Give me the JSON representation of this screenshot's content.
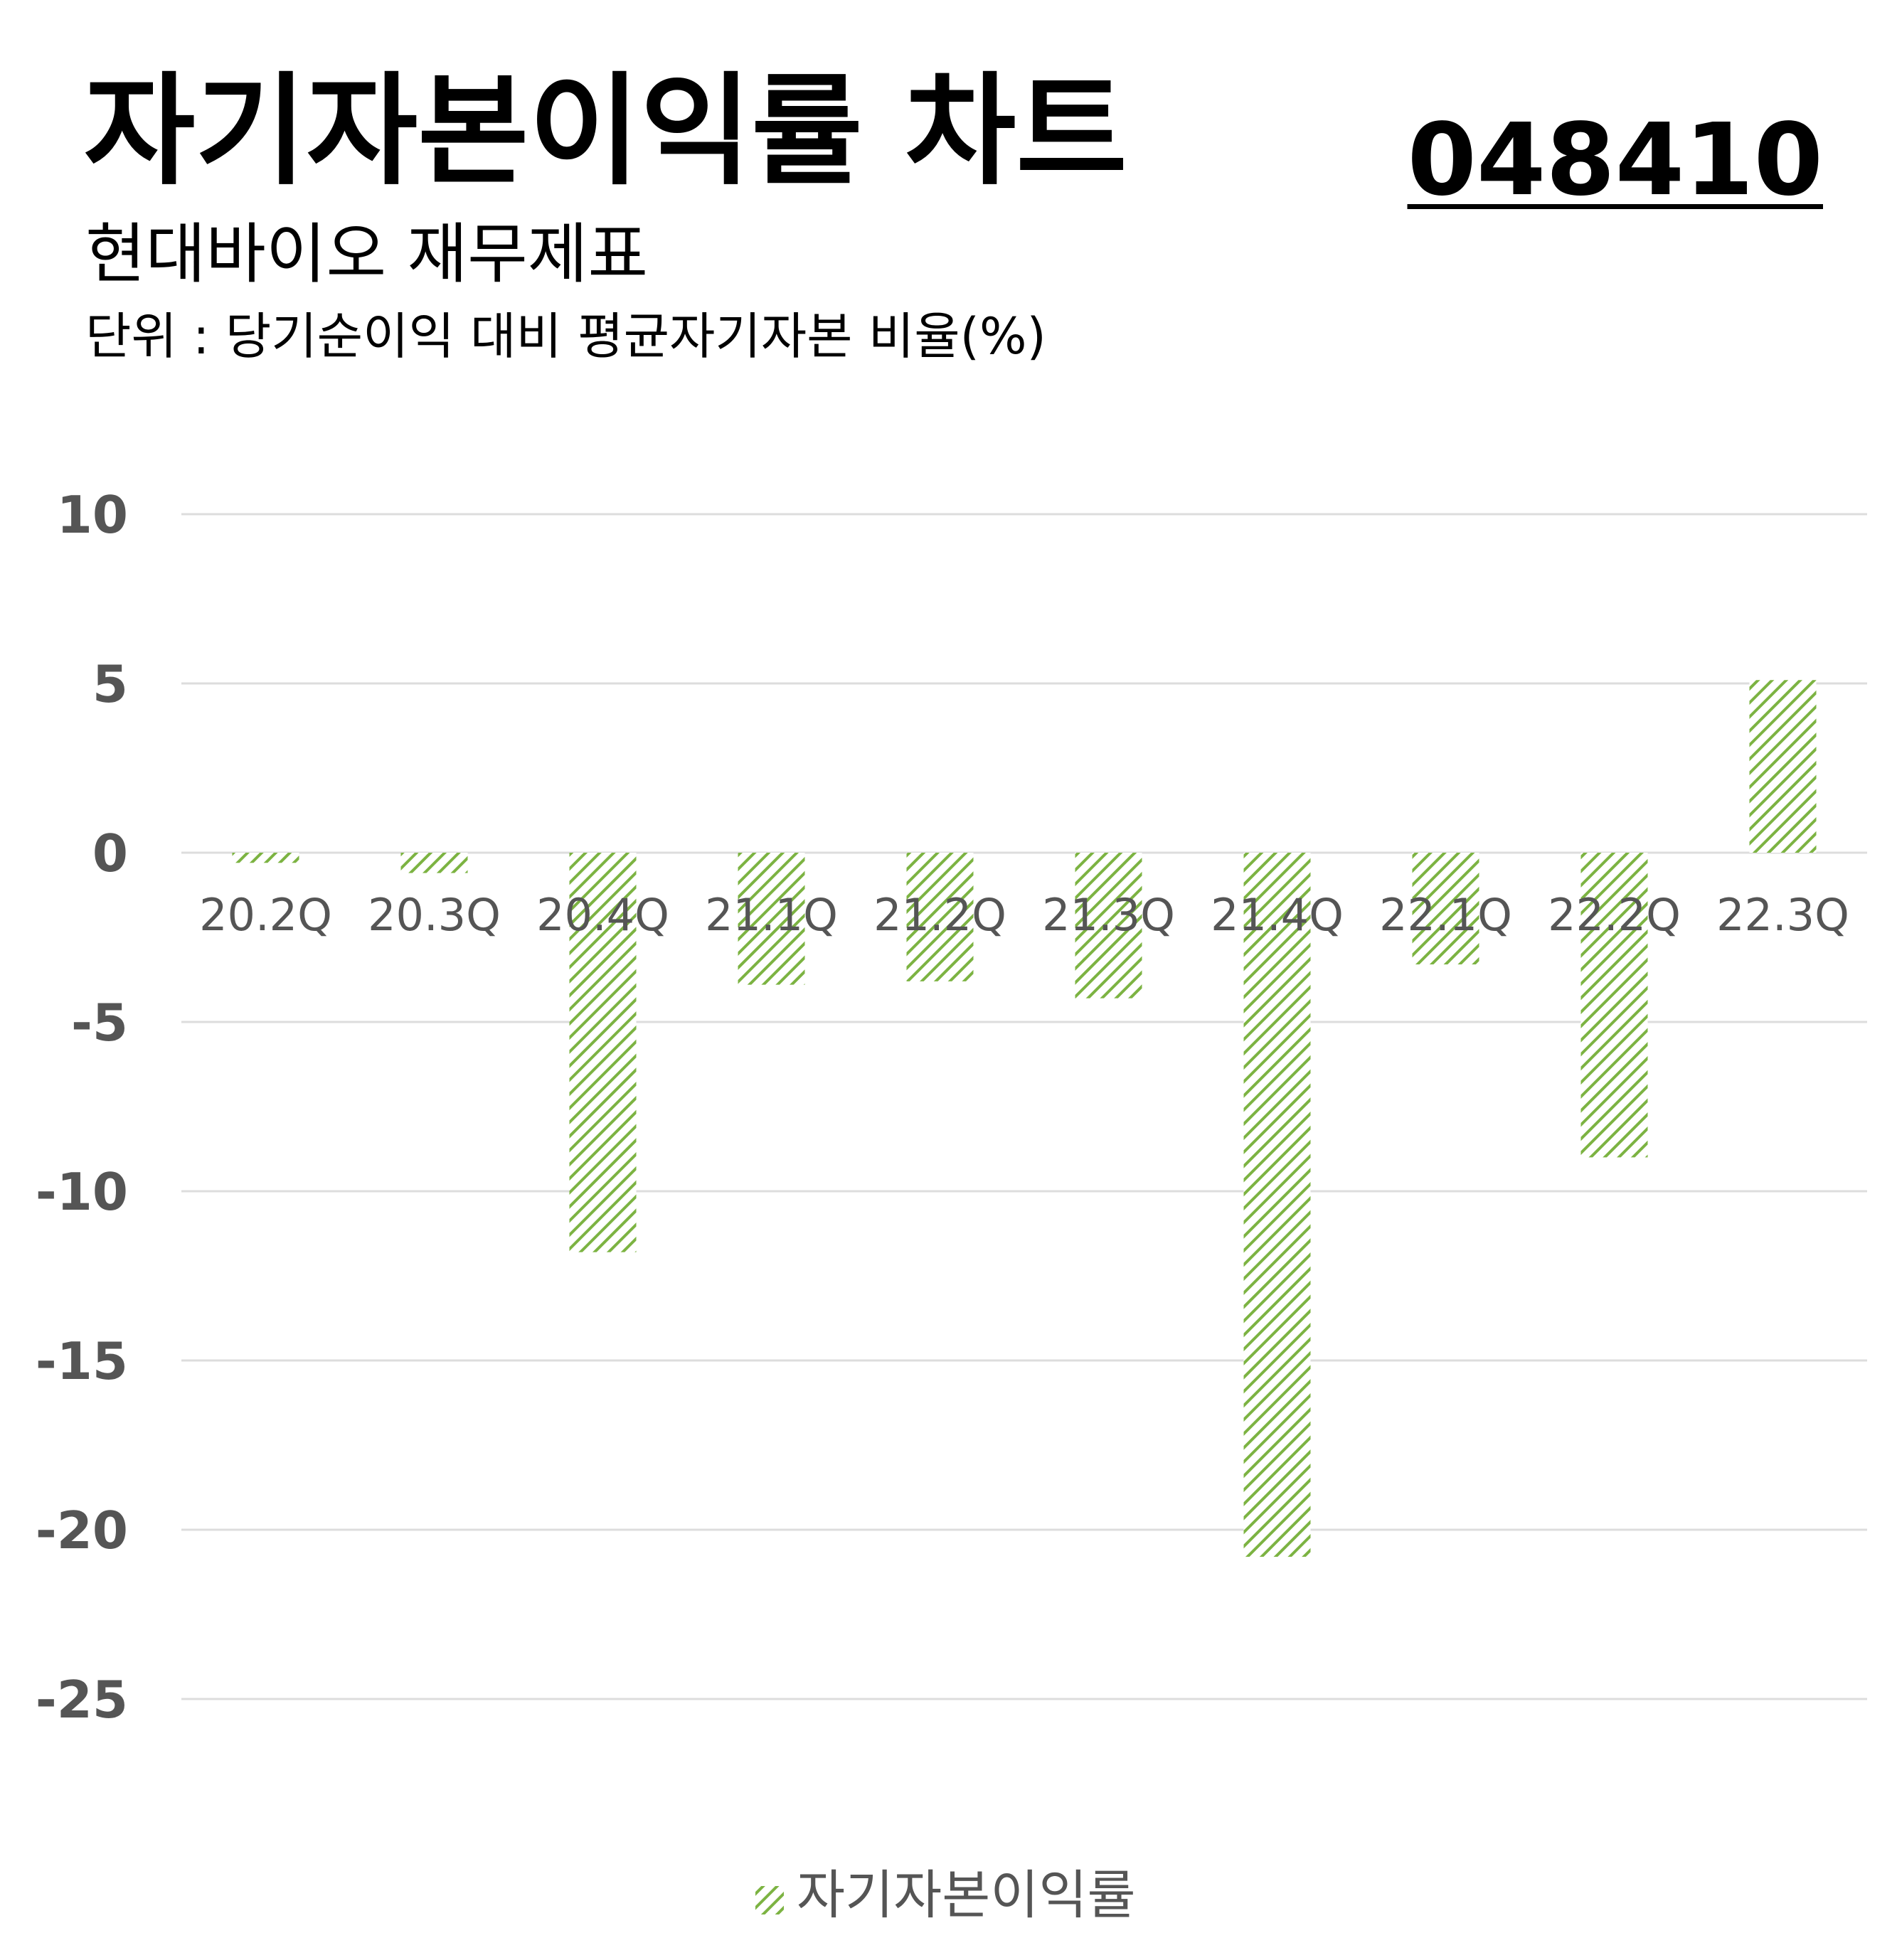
{
  "header": {
    "title": "자기자본이익률 차트",
    "stock_code": "048410",
    "subtitle": "현대바이오 재무제표",
    "unit": "단위 : 당기순이익 대비 평균자기자본 비율(%)"
  },
  "colors": {
    "bar": "#7cb342",
    "grid": "#dddddd",
    "tick": "#555555"
  },
  "chart_data": {
    "type": "bar",
    "title": "자기자본이익률 차트",
    "categories": [
      "20.2Q",
      "20.3Q",
      "20.4Q",
      "21.1Q",
      "21.2Q",
      "21.3Q",
      "21.4Q",
      "22.1Q",
      "22.2Q",
      "22.3Q"
    ],
    "series": [
      {
        "name": "자기자본이익률",
        "values": [
          -0.3,
          -0.6,
          -11.8,
          -3.9,
          -3.8,
          -4.3,
          -20.8,
          -3.3,
          -9.0,
          5.1
        ]
      }
    ],
    "ylim": [
      -25,
      10
    ],
    "yticks": [
      10,
      5,
      0,
      -5,
      -10,
      -15,
      -20,
      -25
    ],
    "grid": true,
    "legend": "bottom",
    "pattern": "diagonal-hatch"
  }
}
